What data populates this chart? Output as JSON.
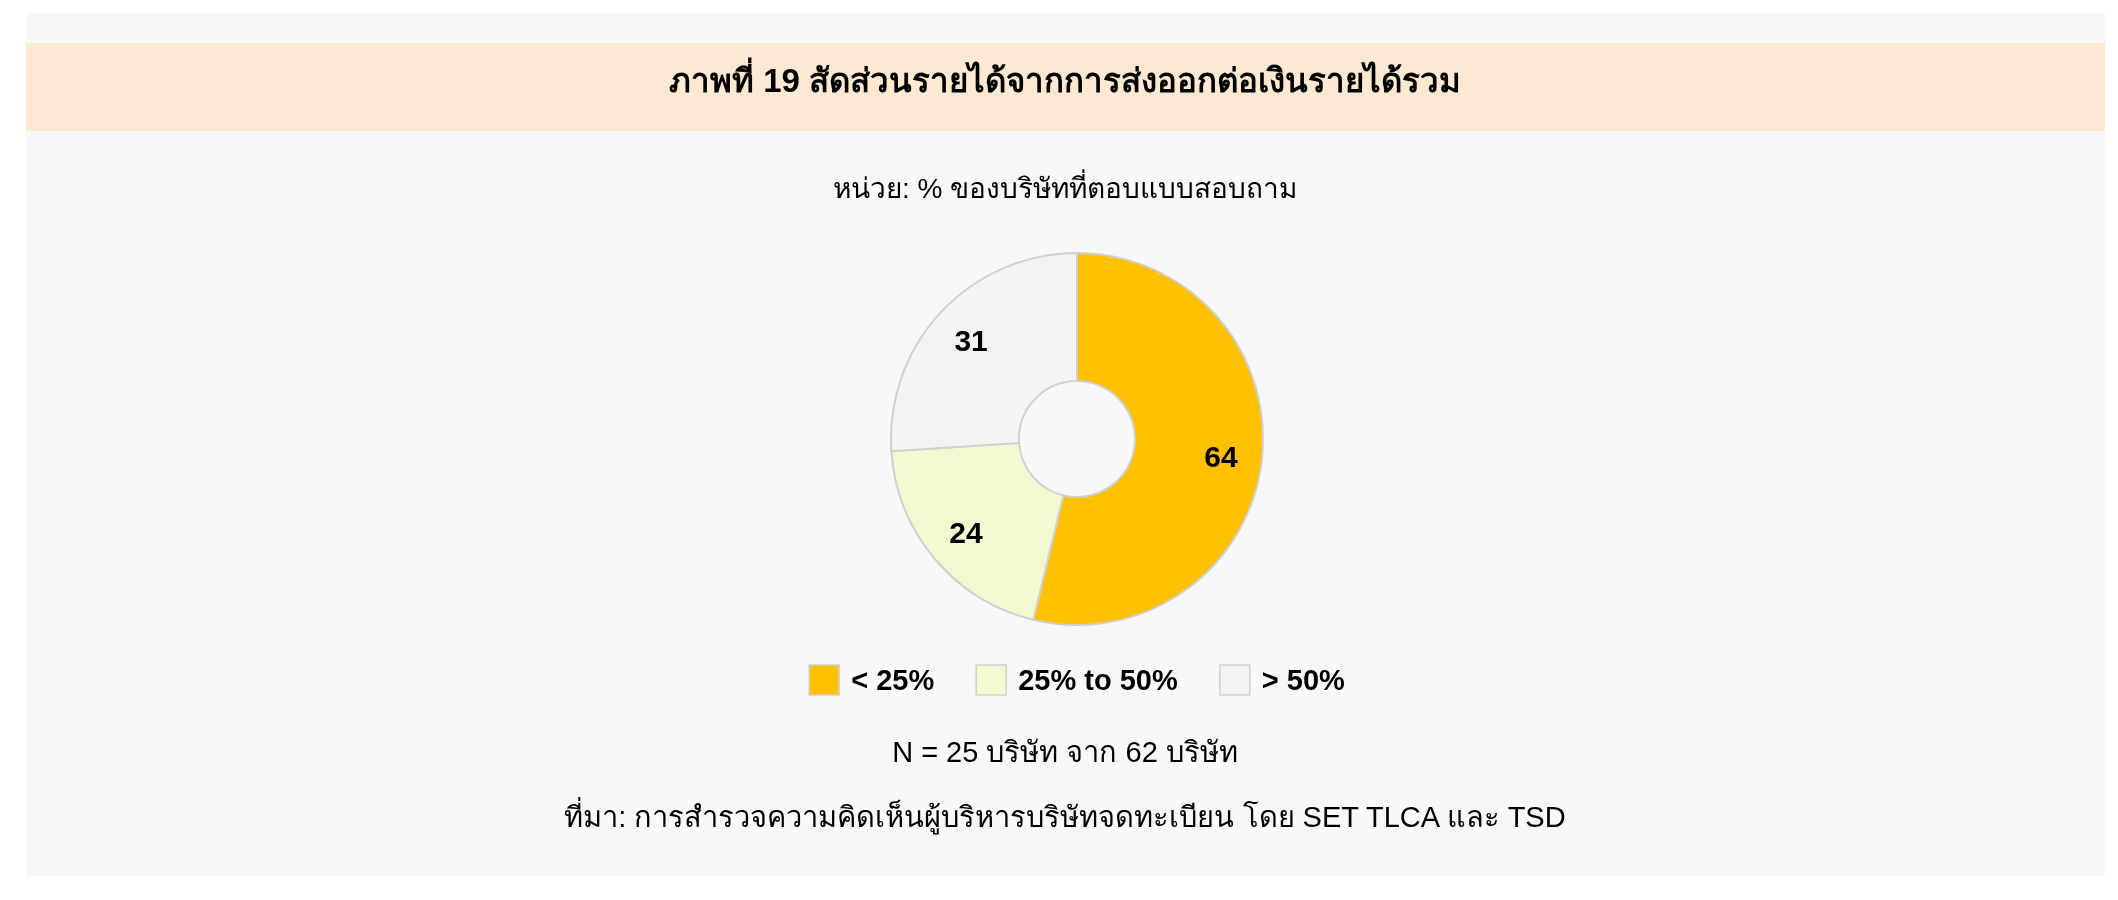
{
  "chart_data": {
    "type": "donut",
    "title": "ภาพที่ 19 สัดส่วนรายได้จากการส่งออกต่อเงินรายได้รวม",
    "subtitle": "หน่วย: % ของบริษัทที่ตอบแบบสอบถาม",
    "categories": [
      "< 25%",
      "25% to 50%",
      "> 50%"
    ],
    "values": [
      64,
      24,
      31
    ],
    "colors": [
      "#ffc000",
      "#f3f8d0",
      "#f3f3f3"
    ],
    "data_labels": true,
    "legend": "bottom",
    "annotations": [
      "N = 25 บริษัท จาก 62 บริษัท",
      "ที่มา: การสำรวจความคิดเห็นผู้บริหารบริษัทจดทะเบียน โดย SET TLCA และ TSD"
    ]
  }
}
